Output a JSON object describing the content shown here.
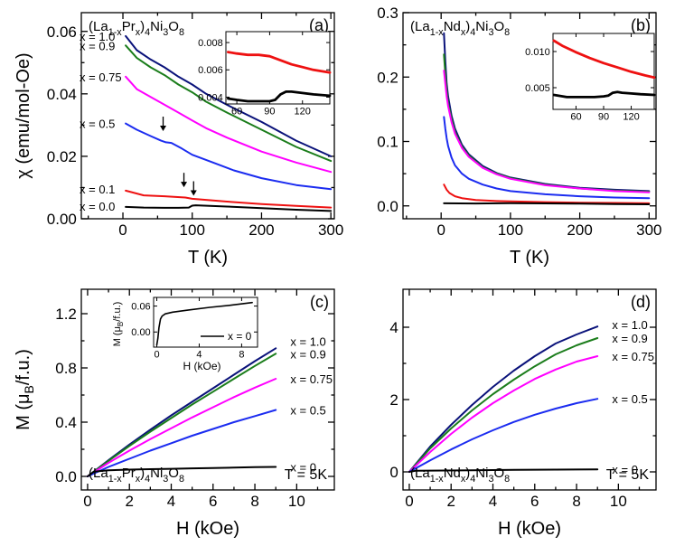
{
  "chart_data": [
    {
      "panel": "(a)",
      "type": "line",
      "compound": "(La1-xPrx)4Ni3O8",
      "xlabel": "T (K)",
      "ylabel": "χ (emu/mol-Oe)",
      "xlim": [
        -60,
        305
      ],
      "ylim": [
        0,
        0.066
      ],
      "xticks": [
        0,
        100,
        200,
        300
      ],
      "yticks": [
        0.0,
        0.02,
        0.04,
        0.06
      ],
      "ytick_labels": [
        "0.00",
        "0.02",
        "0.04",
        "0.06"
      ],
      "series": [
        {
          "name": "x = 1.0",
          "color": "#0a127a",
          "x": [
            4,
            20,
            40,
            60,
            80,
            100,
            120,
            150,
            200,
            250,
            300
          ],
          "y": [
            0.0585,
            0.054,
            0.051,
            0.0485,
            0.0455,
            0.043,
            0.04,
            0.0365,
            0.031,
            0.025,
            0.02
          ]
        },
        {
          "name": "x = 0.9",
          "color": "#1b7d1b",
          "x": [
            4,
            20,
            40,
            60,
            80,
            100,
            120,
            150,
            200,
            250,
            300
          ],
          "y": [
            0.0555,
            0.0515,
            0.0485,
            0.046,
            0.043,
            0.0405,
            0.0375,
            0.034,
            0.0285,
            0.023,
            0.0185
          ]
        },
        {
          "name": "x = 0.75",
          "color": "#ff00ff",
          "x": [
            4,
            20,
            40,
            60,
            80,
            100,
            120,
            150,
            200,
            250,
            300
          ],
          "y": [
            0.0455,
            0.0415,
            0.039,
            0.0365,
            0.034,
            0.0315,
            0.029,
            0.026,
            0.0215,
            0.018,
            0.015
          ]
        },
        {
          "name": "x = 0.5",
          "color": "#1b2cf0",
          "x": [
            4,
            20,
            40,
            55,
            62,
            70,
            85,
            100,
            130,
            160,
            200,
            250,
            300
          ],
          "y": [
            0.0305,
            0.0285,
            0.0265,
            0.025,
            0.0245,
            0.0243,
            0.0225,
            0.0205,
            0.018,
            0.0155,
            0.013,
            0.0108,
            0.0095
          ]
        },
        {
          "name": "x = 0.1",
          "color": "#ee1111",
          "x": [
            4,
            30,
            60,
            90,
            100,
            150,
            200,
            250,
            300
          ],
          "y": [
            0.009,
            0.0075,
            0.0072,
            0.0068,
            0.0064,
            0.0055,
            0.0047,
            0.0041,
            0.0036
          ]
        },
        {
          "name": "x = 0.0",
          "color": "#000000",
          "x": [
            4,
            30,
            60,
            80,
            95,
            100,
            105,
            150,
            200,
            250,
            300
          ],
          "y": [
            0.0038,
            0.0036,
            0.0035,
            0.0035,
            0.0036,
            0.0042,
            0.0043,
            0.0039,
            0.0034,
            0.0029,
            0.0025
          ]
        }
      ],
      "arrows_at_T": [
        58,
        88,
        102
      ],
      "inset": {
        "xlim": [
          50,
          145
        ],
        "ylim": [
          0.0035,
          0.0088
        ],
        "xticks": [
          60,
          90,
          120
        ],
        "yticks": [
          0.004,
          0.006,
          0.008
        ],
        "ytick_labels": [
          "0.004",
          "0.006",
          "0.008"
        ],
        "series": [
          {
            "name": "x = 0.1",
            "color": "#ee1111",
            "x": [
              52,
              60,
              70,
              80,
              90,
              100,
              110,
              120,
              130,
              145
            ],
            "y": [
              0.0073,
              0.0072,
              0.0071,
              0.0071,
              0.007,
              0.0067,
              0.0064,
              0.0062,
              0.006,
              0.0058
            ]
          },
          {
            "name": "x = 0.0",
            "color": "#000000",
            "x": [
              52,
              60,
              70,
              80,
              90,
              95,
              100,
              105,
              110,
              120,
              130,
              145
            ],
            "y": [
              0.0039,
              0.0038,
              0.0037,
              0.0037,
              0.0037,
              0.0038,
              0.0042,
              0.0044,
              0.0044,
              0.0043,
              0.0042,
              0.0041
            ]
          }
        ]
      }
    },
    {
      "panel": "(b)",
      "type": "line",
      "compound": "(La1-xNdx)4Ni3O8",
      "xlabel": "T (K)",
      "ylabel": "",
      "xlim": [
        -55,
        310
      ],
      "ylim": [
        -0.02,
        0.3
      ],
      "xticks": [
        0,
        100,
        200,
        300
      ],
      "yticks": [
        0.0,
        0.1,
        0.2,
        0.3
      ],
      "ytick_labels": [
        "0.0",
        "0.1",
        "0.2",
        "0.3"
      ],
      "series": [
        {
          "name": "x = 1.0",
          "color": "#0a127a",
          "x": [
            4,
            6,
            8,
            10,
            15,
            20,
            30,
            40,
            60,
            80,
            100,
            150,
            200,
            250,
            300
          ],
          "y": [
            0.268,
            0.225,
            0.19,
            0.17,
            0.14,
            0.12,
            0.095,
            0.08,
            0.062,
            0.051,
            0.044,
            0.034,
            0.028,
            0.025,
            0.023
          ]
        },
        {
          "name": "x = 0.9",
          "color": "#1b7d1b",
          "x": [
            4,
            6,
            8,
            10,
            15,
            20,
            30,
            40,
            60,
            80,
            100,
            150,
            200,
            250,
            300
          ],
          "y": [
            0.235,
            0.205,
            0.18,
            0.16,
            0.135,
            0.115,
            0.092,
            0.078,
            0.06,
            0.05,
            0.043,
            0.033,
            0.027,
            0.024,
            0.022
          ]
        },
        {
          "name": "x = 0.75",
          "color": "#ff00ff",
          "x": [
            4,
            6,
            8,
            10,
            15,
            20,
            30,
            40,
            60,
            80,
            100,
            150,
            200,
            250,
            300
          ],
          "y": [
            0.21,
            0.19,
            0.17,
            0.155,
            0.13,
            0.112,
            0.09,
            0.076,
            0.059,
            0.049,
            0.042,
            0.032,
            0.027,
            0.023,
            0.021
          ]
        },
        {
          "name": "x = 0.5",
          "color": "#1b2cf0",
          "x": [
            4,
            6,
            8,
            10,
            15,
            20,
            30,
            40,
            60,
            80,
            100,
            150,
            200,
            250,
            300
          ],
          "y": [
            0.138,
            0.12,
            0.105,
            0.093,
            0.075,
            0.063,
            0.05,
            0.042,
            0.033,
            0.027,
            0.023,
            0.018,
            0.015,
            0.013,
            0.012
          ]
        },
        {
          "name": "x = 0.1",
          "color": "#ee1111",
          "x": [
            4,
            8,
            12,
            20,
            30,
            50,
            80,
            100,
            150,
            200,
            250,
            300
          ],
          "y": [
            0.033,
            0.025,
            0.02,
            0.015,
            0.012,
            0.009,
            0.0075,
            0.007,
            0.0058,
            0.005,
            0.0045,
            0.004
          ]
        },
        {
          "name": "x = 0.0",
          "color": "#000000",
          "x": [
            4,
            50,
            100,
            150,
            200,
            250,
            300
          ],
          "y": [
            0.004,
            0.0037,
            0.0043,
            0.0039,
            0.0034,
            0.0029,
            0.0025
          ]
        }
      ],
      "inset": {
        "xlim": [
          35,
          145
        ],
        "ylim": [
          0.002,
          0.0125
        ],
        "xticks": [
          60,
          90,
          120
        ],
        "yticks": [
          0.005,
          0.01
        ],
        "ytick_labels": [
          "0.005",
          "0.010"
        ],
        "series": [
          {
            "name": "x = 0.1",
            "color": "#ee1111",
            "x": [
              36,
              45,
              60,
              75,
              90,
              105,
              120,
              135,
              145
            ],
            "y": [
              0.0115,
              0.0108,
              0.0099,
              0.0091,
              0.0084,
              0.0078,
              0.0072,
              0.0067,
              0.0064
            ]
          },
          {
            "name": "x = 0.0",
            "color": "#000000",
            "x": [
              36,
              50,
              60,
              70,
              80,
              90,
              95,
              100,
              105,
              110,
              120,
              130,
              145
            ],
            "y": [
              0.004,
              0.0037,
              0.0037,
              0.0037,
              0.0037,
              0.0038,
              0.0039,
              0.0043,
              0.0044,
              0.0043,
              0.0042,
              0.0041,
              0.004
            ]
          }
        ]
      }
    },
    {
      "panel": "(c)",
      "type": "line",
      "compound": "(La1-xPrx)4Ni3O8",
      "temperature": "T = 5K",
      "xlabel": "H (kOe)",
      "ylabel": "M (μB/f.u.)",
      "xlim": [
        -0.3,
        11.8
      ],
      "ylim": [
        -0.1,
        1.38
      ],
      "xticks": [
        0,
        2,
        4,
        6,
        8,
        10
      ],
      "yticks": [
        0.0,
        0.4,
        0.8,
        1.2
      ],
      "ytick_labels": [
        "0.0",
        "0.4",
        "0.8",
        "1.2"
      ],
      "series": [
        {
          "name": "x = 1.0",
          "color": "#0a127a",
          "x": [
            0,
            1,
            2,
            3,
            4,
            5,
            6,
            7,
            8,
            9
          ],
          "y": [
            0,
            0.12,
            0.235,
            0.345,
            0.45,
            0.55,
            0.65,
            0.75,
            0.85,
            0.945
          ]
        },
        {
          "name": "x = 0.9",
          "color": "#1b7d1b",
          "x": [
            0,
            1,
            2,
            3,
            4,
            5,
            6,
            7,
            8,
            9
          ],
          "y": [
            0,
            0.115,
            0.225,
            0.33,
            0.43,
            0.53,
            0.625,
            0.72,
            0.815,
            0.905
          ]
        },
        {
          "name": "x = 0.75",
          "color": "#ff00ff",
          "x": [
            0,
            1,
            2,
            3,
            4,
            5,
            6,
            7,
            8,
            9
          ],
          "y": [
            0,
            0.1,
            0.19,
            0.275,
            0.355,
            0.435,
            0.51,
            0.585,
            0.655,
            0.72
          ]
        },
        {
          "name": "x = 0.5",
          "color": "#1b2cf0",
          "x": [
            0,
            1,
            2,
            3,
            4,
            5,
            6,
            7,
            8,
            9
          ],
          "y": [
            0,
            0.07,
            0.13,
            0.19,
            0.245,
            0.3,
            0.35,
            0.4,
            0.445,
            0.49
          ]
        },
        {
          "name": "x = 0",
          "color": "#000000",
          "x": [
            0,
            0.3,
            1,
            2,
            3,
            4,
            5,
            6,
            7,
            8,
            9
          ],
          "y": [
            0,
            0.035,
            0.045,
            0.05,
            0.053,
            0.056,
            0.059,
            0.062,
            0.065,
            0.068,
            0.07
          ]
        }
      ],
      "inset": {
        "legend": "x = 0",
        "xlabel": "H (kOe)",
        "ylabel": "M (μB/f.u.)",
        "xlim": [
          -0.3,
          9.5
        ],
        "ylim": [
          -0.035,
          0.08
        ],
        "xticks": [
          0,
          4,
          8
        ],
        "yticks": [
          0.0,
          0.06
        ],
        "ytick_labels": [
          "0.00",
          "0.06"
        ],
        "series": [
          {
            "name": "x = 0",
            "color": "#000000",
            "x": [
              0,
              0.1,
              0.2,
              0.35,
              0.5,
              0.8,
              1.5,
              3,
              5,
              7,
              9
            ],
            "y": [
              -0.03,
              -0.015,
              0.01,
              0.03,
              0.037,
              0.042,
              0.046,
              0.051,
              0.057,
              0.062,
              0.068
            ]
          }
        ]
      }
    },
    {
      "panel": "(d)",
      "type": "line",
      "compound": "(La1-xNdx)4Ni3O8",
      "temperature": "T = 5K",
      "xlabel": "H (kOe)",
      "ylabel": "",
      "xlim": [
        -0.3,
        11.8
      ],
      "ylim": [
        -0.5,
        5.05
      ],
      "xticks": [
        0,
        2,
        4,
        6,
        8,
        10
      ],
      "yticks": [
        0,
        2,
        4
      ],
      "ytick_labels": [
        "0",
        "2",
        "4"
      ],
      "series": [
        {
          "name": "x = 1.0",
          "color": "#0a127a",
          "x": [
            0,
            1,
            2,
            3,
            4,
            5,
            6,
            7,
            8,
            9
          ],
          "y": [
            0,
            0.7,
            1.3,
            1.85,
            2.35,
            2.8,
            3.2,
            3.55,
            3.8,
            4.02
          ]
        },
        {
          "name": "x = 0.9",
          "color": "#1b7d1b",
          "x": [
            0,
            1,
            2,
            3,
            4,
            5,
            6,
            7,
            8,
            9
          ],
          "y": [
            0,
            0.65,
            1.2,
            1.7,
            2.15,
            2.55,
            2.92,
            3.25,
            3.5,
            3.7
          ]
        },
        {
          "name": "x = 0.75",
          "color": "#ff00ff",
          "x": [
            0,
            1,
            2,
            3,
            4,
            5,
            6,
            7,
            8,
            9
          ],
          "y": [
            0,
            0.55,
            1.05,
            1.5,
            1.9,
            2.25,
            2.57,
            2.83,
            3.05,
            3.2
          ]
        },
        {
          "name": "x = 0.5",
          "color": "#1b2cf0",
          "x": [
            0,
            1,
            2,
            3,
            4,
            5,
            6,
            7,
            8,
            9
          ],
          "y": [
            0,
            0.32,
            0.62,
            0.9,
            1.15,
            1.38,
            1.58,
            1.75,
            1.9,
            2.02
          ]
        },
        {
          "name": "x = 0",
          "color": "#000000",
          "x": [
            0,
            0.3,
            1,
            3,
            5,
            7,
            9
          ],
          "y": [
            0,
            0.03,
            0.035,
            0.045,
            0.055,
            0.062,
            0.07
          ]
        }
      ]
    }
  ]
}
